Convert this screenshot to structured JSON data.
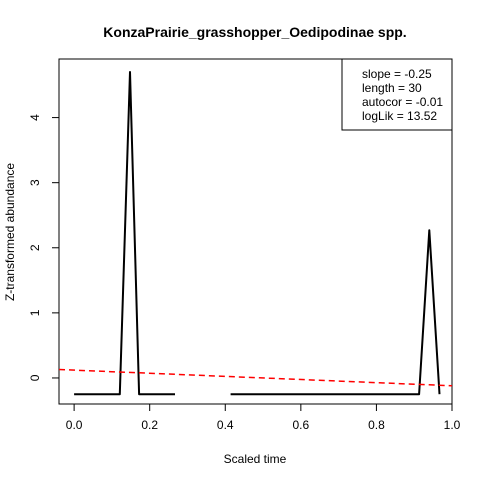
{
  "chart_data": {
    "type": "line",
    "title": "KonzaPrairie_grasshopper_Oedipodinae spp.",
    "xlabel": "Scaled time",
    "ylabel": "Z-transformed abundance",
    "xlim": [
      -0.04,
      1.0
    ],
    "ylim": [
      -0.4,
      4.9
    ],
    "xticks": [
      0.0,
      0.2,
      0.4,
      0.6,
      0.8,
      1.0
    ],
    "xtick_labels": [
      "0.0",
      "0.2",
      "0.4",
      "0.6",
      "0.8",
      "1.0"
    ],
    "yticks": [
      0,
      1,
      2,
      3,
      4
    ],
    "ytick_labels": [
      "0",
      "1",
      "2",
      "3",
      "4"
    ],
    "grid": false,
    "series": [
      {
        "color": "#000000",
        "segments": [
          {
            "x": [
              0.0,
              0.034,
              0.069,
              0.103,
              0.121,
              0.148,
              0.172,
              0.207,
              0.241,
              0.267
            ],
            "y": [
              -0.25,
              -0.25,
              -0.25,
              -0.25,
              -0.25,
              4.7,
              -0.25,
              -0.25,
              -0.25,
              -0.25
            ]
          },
          {
            "x": [
              0.414,
              0.448,
              0.483,
              0.517,
              0.552,
              0.586,
              0.621,
              0.655,
              0.69,
              0.724,
              0.759,
              0.793,
              0.828,
              0.862,
              0.897,
              0.913,
              0.94,
              0.967
            ],
            "y": [
              -0.25,
              -0.25,
              -0.25,
              -0.25,
              -0.25,
              -0.25,
              -0.25,
              -0.25,
              -0.25,
              -0.25,
              -0.25,
              -0.25,
              -0.25,
              -0.25,
              -0.25,
              -0.25,
              2.27,
              -0.25
            ]
          }
        ]
      },
      {
        "color": "#ff0000",
        "style": "dashed",
        "trend": {
          "x": [
            -0.04,
            1.0
          ],
          "y": [
            0.13,
            -0.12
          ]
        }
      }
    ],
    "legend": {
      "placement": "top-right",
      "entries": [
        "slope = -0.25",
        "length = 30",
        "autocor = -0.01",
        "logLik = 13.52"
      ]
    }
  }
}
